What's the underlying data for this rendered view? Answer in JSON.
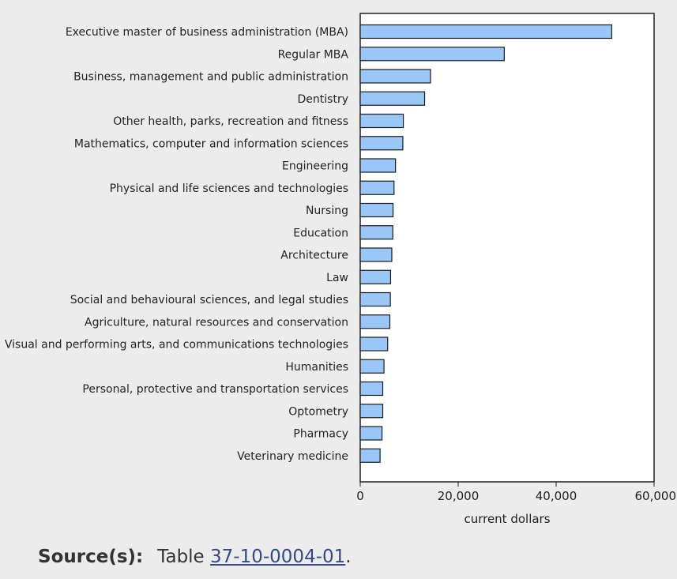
{
  "chart_data": {
    "type": "bar",
    "orientation": "horizontal",
    "categories": [
      "Executive master of business administration (MBA)",
      "Regular MBA",
      "Business, management and public administration",
      "Dentistry",
      "Other health, parks, recreation and fitness",
      "Mathematics, computer and information sciences",
      "Engineering",
      "Physical and life sciences and technologies",
      "Nursing",
      "Education",
      "Architecture",
      "Law",
      "Social and behavioural sciences, and legal studies",
      "Agriculture, natural resources and conservation",
      "Visual and performing arts, and communications technologies",
      "Humanities",
      "Personal, protective and transportation services",
      "Optometry",
      "Pharmacy",
      "Veterinary medicine"
    ],
    "values": [
      51350,
      29410,
      14350,
      13150,
      8800,
      8700,
      7200,
      6900,
      6700,
      6650,
      6450,
      6200,
      6150,
      6050,
      5600,
      4850,
      4600,
      4600,
      4450,
      4050
    ],
    "xlabel": "current dollars",
    "xlim": [
      0,
      60000
    ],
    "xticks": [
      0,
      20000,
      40000,
      60000
    ],
    "xtick_labels": [
      "0",
      "20,000",
      "40,000",
      "60,000"
    ],
    "bar_color": "#99c8f8",
    "bar_stroke": "#1a1a1a"
  },
  "source": {
    "label": "Source(s):",
    "prefix": "Table",
    "link_text": "37-10-0004-01",
    "suffix": "."
  }
}
